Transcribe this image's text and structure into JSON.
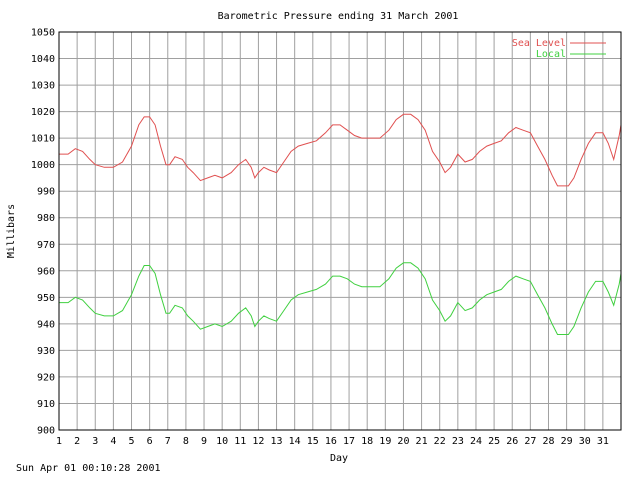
{
  "footer_text": "Sun Apr 01 00:10:28 2001",
  "colors": {
    "sea_level": "#e05050",
    "local": "#40d040",
    "grid": "#a0a0a0",
    "frame": "#000000"
  },
  "chart_data": {
    "type": "line",
    "title": "Barometric Pressure ending 31 March 2001",
    "xlabel": "Day",
    "ylabel": "Millibars",
    "ylim": [
      900,
      1050
    ],
    "yticks": [
      900,
      910,
      920,
      930,
      940,
      950,
      960,
      970,
      980,
      990,
      1000,
      1010,
      1020,
      1030,
      1040,
      1050
    ],
    "xlim": [
      1,
      32
    ],
    "xticks": [
      "1",
      "2",
      "3",
      "4",
      "5",
      "6",
      "7",
      "8",
      "9",
      "10",
      "11",
      "12",
      "13",
      "14",
      "15",
      "16",
      "17",
      "18",
      "19",
      "20",
      "21",
      "22",
      "23",
      "24",
      "25",
      "26",
      "27",
      "28",
      "29",
      "30",
      "31"
    ],
    "grid": true,
    "legend_position": "top-right",
    "series": [
      {
        "name": "Sea Level",
        "color": "#e05050",
        "x": [
          1.0,
          1.5,
          1.9,
          2.3,
          2.7,
          3.0,
          3.5,
          4.0,
          4.5,
          5.0,
          5.4,
          5.7,
          6.0,
          6.3,
          6.6,
          6.9,
          7.1,
          7.4,
          7.8,
          8.1,
          8.4,
          8.8,
          9.2,
          9.6,
          10.0,
          10.5,
          10.9,
          11.3,
          11.6,
          11.8,
          12.0,
          12.3,
          12.6,
          13.0,
          13.4,
          13.8,
          14.2,
          14.7,
          15.2,
          15.7,
          16.1,
          16.5,
          16.9,
          17.3,
          17.7,
          18.2,
          18.7,
          19.2,
          19.6,
          20.0,
          20.4,
          20.8,
          21.2,
          21.6,
          22.0,
          22.3,
          22.6,
          23.0,
          23.4,
          23.8,
          24.2,
          24.6,
          25.0,
          25.4,
          25.8,
          26.2,
          26.6,
          27.0,
          27.4,
          27.8,
          28.2,
          28.5,
          28.8,
          29.1,
          29.4,
          29.8,
          30.2,
          30.6,
          31.0,
          31.3,
          31.6,
          31.9,
          32.0
        ],
        "values": [
          1004,
          1004,
          1006,
          1005,
          1002,
          1000,
          999,
          999,
          1001,
          1007,
          1015,
          1018,
          1018,
          1015,
          1007,
          1000,
          1000,
          1003,
          1002,
          999,
          997,
          994,
          995,
          996,
          995,
          997,
          1000,
          1002,
          999,
          995,
          997,
          999,
          998,
          997,
          1001,
          1005,
          1007,
          1008,
          1009,
          1012,
          1015,
          1015,
          1013,
          1011,
          1010,
          1010,
          1010,
          1013,
          1017,
          1019,
          1019,
          1017,
          1013,
          1005,
          1001,
          997,
          999,
          1004,
          1001,
          1002,
          1005,
          1007,
          1008,
          1009,
          1012,
          1014,
          1013,
          1012,
          1007,
          1002,
          996,
          992,
          992,
          992,
          995,
          1002,
          1008,
          1012,
          1012,
          1008,
          1002,
          1011,
          1015
        ]
      },
      {
        "name": "Local",
        "color": "#40d040",
        "x": [
          1.0,
          1.5,
          1.9,
          2.3,
          2.7,
          3.0,
          3.5,
          4.0,
          4.5,
          5.0,
          5.4,
          5.7,
          6.0,
          6.3,
          6.6,
          6.9,
          7.1,
          7.4,
          7.8,
          8.1,
          8.4,
          8.8,
          9.2,
          9.6,
          10.0,
          10.5,
          10.9,
          11.3,
          11.6,
          11.8,
          12.0,
          12.3,
          12.6,
          13.0,
          13.4,
          13.8,
          14.2,
          14.7,
          15.2,
          15.7,
          16.1,
          16.5,
          16.9,
          17.3,
          17.7,
          18.2,
          18.7,
          19.2,
          19.6,
          20.0,
          20.4,
          20.8,
          21.2,
          21.6,
          22.0,
          22.3,
          22.6,
          23.0,
          23.4,
          23.8,
          24.2,
          24.6,
          25.0,
          25.4,
          25.8,
          26.2,
          26.6,
          27.0,
          27.4,
          27.8,
          28.2,
          28.5,
          28.8,
          29.1,
          29.4,
          29.8,
          30.2,
          30.6,
          31.0,
          31.3,
          31.6,
          31.9,
          32.0
        ],
        "values": [
          948,
          948,
          950,
          949,
          946,
          944,
          943,
          943,
          945,
          951,
          958,
          962,
          962,
          959,
          951,
          944,
          944,
          947,
          946,
          943,
          941,
          938,
          939,
          940,
          939,
          941,
          944,
          946,
          943,
          939,
          941,
          943,
          942,
          941,
          945,
          949,
          951,
          952,
          953,
          955,
          958,
          958,
          957,
          955,
          954,
          954,
          954,
          957,
          961,
          963,
          963,
          961,
          957,
          949,
          945,
          941,
          943,
          948,
          945,
          946,
          949,
          951,
          952,
          953,
          956,
          958,
          957,
          956,
          951,
          946,
          940,
          936,
          936,
          936,
          939,
          946,
          952,
          956,
          956,
          952,
          947,
          955,
          959
        ]
      }
    ]
  }
}
